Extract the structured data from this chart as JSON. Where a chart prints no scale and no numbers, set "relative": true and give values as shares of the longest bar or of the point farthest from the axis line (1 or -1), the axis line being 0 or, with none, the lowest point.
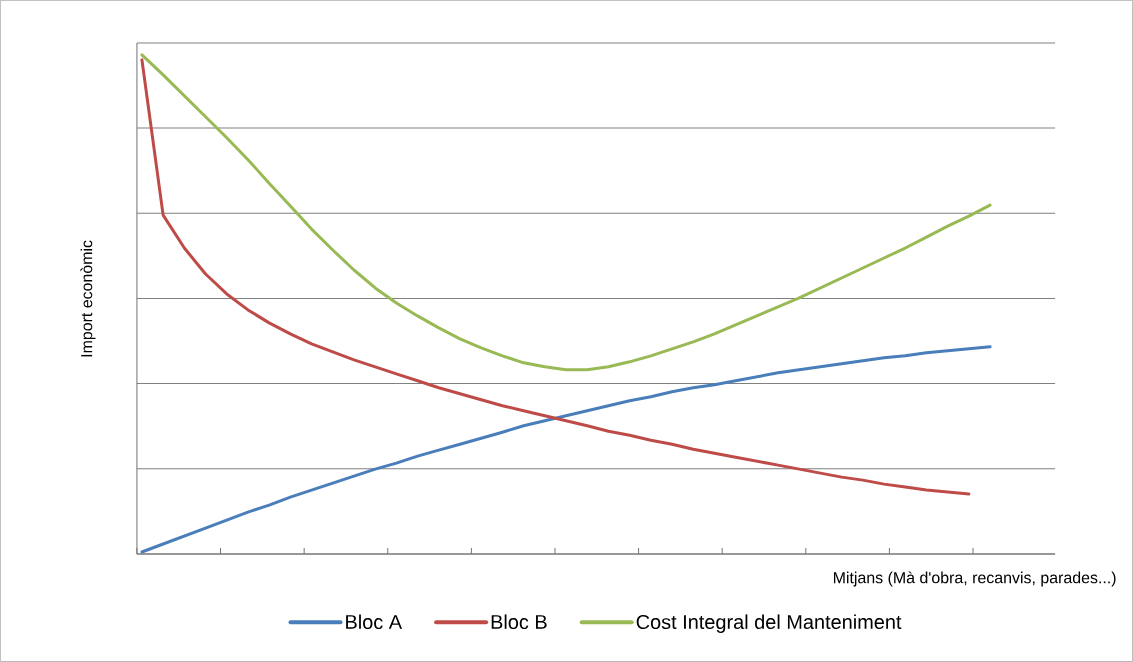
{
  "chart_data": {
    "type": "line",
    "relative": true,
    "xlabel": "Mitjans (Mà d'obra, recanvis, parades...)",
    "ylabel": "Import econòmic",
    "grid": "y",
    "legend": "bottom",
    "marker": "none",
    "line_style": "solid",
    "categories": [
      null,
      null,
      null,
      null,
      null,
      null,
      null,
      null,
      null,
      null,
      null,
      null,
      null,
      null,
      null,
      null,
      null,
      null,
      null,
      null,
      null,
      null,
      null,
      null,
      null,
      null,
      null,
      null,
      null,
      null,
      null,
      null,
      null,
      null,
      null,
      null,
      null,
      null,
      null,
      null,
      null
    ],
    "series": [
      {
        "name": "Bloc A",
        "color": "#4a7ebb",
        "values": [
          0.004,
          0.02,
          0.036,
          0.052,
          0.068,
          0.084,
          0.098,
          0.114,
          0.128,
          0.142,
          0.156,
          0.17,
          0.182,
          0.196,
          0.208,
          0.22,
          0.232,
          0.244,
          0.257,
          0.267,
          0.277,
          0.287,
          0.297,
          0.307,
          0.315,
          0.325,
          0.333,
          0.339,
          0.347,
          0.355,
          0.363,
          0.369,
          0.375,
          0.381,
          0.387,
          0.393,
          0.397,
          0.403,
          0.407,
          0.411,
          0.415
        ]
      },
      {
        "name": "Bloc B",
        "color": "#be4b48",
        "values": [
          0.99,
          0.679,
          0.613,
          0.561,
          0.521,
          0.489,
          0.463,
          0.441,
          0.421,
          0.405,
          0.389,
          0.375,
          0.361,
          0.347,
          0.333,
          0.321,
          0.309,
          0.297,
          0.287,
          0.277,
          0.267,
          0.257,
          0.246,
          0.238,
          0.228,
          0.22,
          0.21,
          0.202,
          0.194,
          0.186,
          0.178,
          0.17,
          0.162,
          0.154,
          0.148,
          0.14,
          0.134,
          0.128,
          0.124,
          0.12,
          null
        ]
      },
      {
        "name": "Cost Integral del Manteniment",
        "color": "#98b954",
        "values": [
          1,
          0.96,
          0.918,
          0.876,
          0.834,
          0.79,
          0.743,
          0.697,
          0.651,
          0.609,
          0.569,
          0.533,
          0.503,
          0.477,
          0.453,
          0.431,
          0.413,
          0.397,
          0.383,
          0.375,
          0.369,
          0.369,
          0.375,
          0.385,
          0.397,
          0.411,
          0.425,
          0.441,
          0.459,
          0.477,
          0.495,
          0.513,
          0.533,
          0.553,
          0.573,
          0.593,
          0.613,
          0.635,
          0.657,
          0.677,
          0.699
        ]
      }
    ]
  }
}
